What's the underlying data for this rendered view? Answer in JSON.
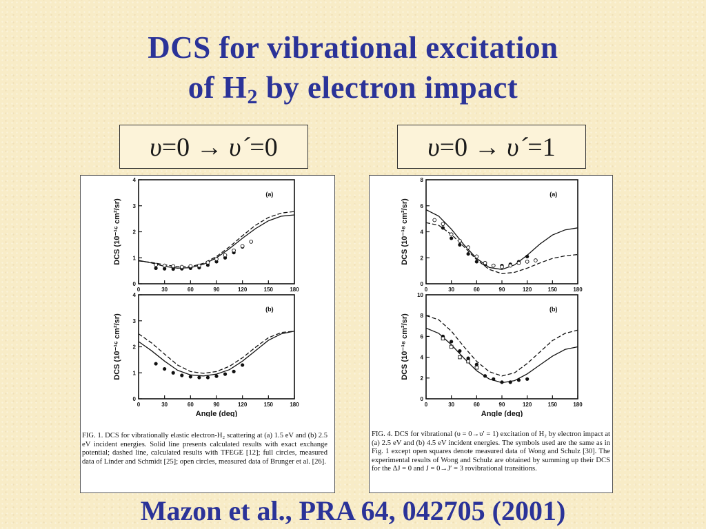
{
  "slide": {
    "title_line1": "DCS for vibrational excitation",
    "title_line2_pre": "of H",
    "title_line2_sub": "2",
    "title_line2_post": " by electron impact",
    "citation": "Mazon et al., PRA 64, 042705 (2001)",
    "colors": {
      "title": "#2b3398",
      "background": "#f8ecc7"
    }
  },
  "transitions": {
    "left": {
      "v": "υ",
      "rest": "=0 → ",
      "vp": "υ´",
      "end": "=0"
    },
    "right": {
      "v": "υ",
      "rest": "=0 → ",
      "vp": "υ´",
      "end": "=1"
    }
  },
  "captions": {
    "fig1": "FIG. 1. DCS for vibrationally elastic electron-H₂ scattering at (a) 1.5 eV and (b) 2.5 eV incident energies. Solid line presents calculated results with exact exchange potential; dashed line, calculated results with TFEGE [12]; full circles, measured data of Linder and Schmidt [25]; open circles, measured data of Brunger et al. [26].",
    "fig4": "FIG. 4. DCS for vibrational (υ = 0→υ′ = 1) excitation of H₂ by electron impact at (a) 2.5 eV and (b) 4.5 eV incident energies. The symbols used are the same as in Fig. 1 except open squares denote measured data of Wong and Schulz [30]. The experimental results of Wong and Schulz are obtained by summing up their DCS for the ΔJ = 0 and J = 0→J′ = 3 rovibrational transitions."
  },
  "chart_data": [
    {
      "type": "line",
      "figure": "FIG. 1",
      "panel_label": "(a)",
      "ylabel": "DCS (10⁻¹⁶ cm²/sr)",
      "xlabel": "",
      "xlim": [
        0,
        180
      ],
      "ylim": [
        0,
        4
      ],
      "xticks": [
        0,
        30,
        60,
        90,
        120,
        150,
        180
      ],
      "yticks": [
        0,
        1,
        2,
        3,
        4
      ],
      "series": [
        {
          "style": "solid",
          "x": [
            0,
            15,
            30,
            45,
            60,
            75,
            90,
            105,
            120,
            135,
            150,
            165,
            180
          ],
          "y": [
            0.9,
            0.8,
            0.67,
            0.6,
            0.62,
            0.75,
            1.0,
            1.35,
            1.75,
            2.12,
            2.42,
            2.6,
            2.65
          ]
        },
        {
          "style": "dashed",
          "x": [
            0,
            15,
            30,
            45,
            60,
            75,
            90,
            105,
            120,
            135,
            150,
            165,
            180
          ],
          "y": [
            0.88,
            0.82,
            0.73,
            0.66,
            0.66,
            0.79,
            1.05,
            1.42,
            1.85,
            2.25,
            2.55,
            2.72,
            2.78
          ]
        },
        {
          "style": "filled",
          "x": [
            20,
            30,
            40,
            50,
            60,
            70,
            80,
            90,
            100,
            110,
            120
          ],
          "y": [
            0.6,
            0.58,
            0.57,
            0.58,
            0.6,
            0.62,
            0.72,
            0.85,
            1.0,
            1.2,
            1.42
          ]
        },
        {
          "style": "open",
          "x": [
            20,
            30,
            40,
            50,
            60,
            70,
            80,
            90,
            100,
            110,
            120,
            130
          ],
          "y": [
            0.73,
            0.7,
            0.68,
            0.65,
            0.68,
            0.7,
            0.82,
            0.95,
            1.1,
            1.28,
            1.45,
            1.62
          ]
        }
      ]
    },
    {
      "type": "line",
      "figure": "FIG. 1",
      "panel_label": "(b)",
      "ylabel": "DCS (10⁻¹⁶ cm²/sr)",
      "xlabel": "Angle (deg)",
      "xlim": [
        0,
        180
      ],
      "ylim": [
        0,
        4
      ],
      "xticks": [
        0,
        30,
        60,
        90,
        120,
        150,
        180
      ],
      "yticks": [
        0,
        1,
        2,
        3,
        4
      ],
      "series": [
        {
          "style": "solid",
          "x": [
            0,
            15,
            30,
            45,
            60,
            75,
            90,
            105,
            120,
            135,
            150,
            165,
            180
          ],
          "y": [
            2.2,
            1.85,
            1.45,
            1.1,
            0.92,
            0.88,
            0.95,
            1.12,
            1.45,
            1.85,
            2.25,
            2.5,
            2.6
          ]
        },
        {
          "style": "dashed",
          "x": [
            0,
            15,
            30,
            45,
            60,
            75,
            90,
            105,
            120,
            135,
            150,
            165,
            180
          ],
          "y": [
            2.5,
            2.15,
            1.72,
            1.3,
            1.05,
            0.98,
            1.05,
            1.25,
            1.58,
            1.98,
            2.35,
            2.55,
            2.6
          ]
        },
        {
          "style": "filled",
          "x": [
            20,
            30,
            40,
            50,
            60,
            70,
            80,
            90,
            100,
            110,
            120
          ],
          "y": [
            1.35,
            1.15,
            1.0,
            0.9,
            0.85,
            0.82,
            0.82,
            0.87,
            0.95,
            1.05,
            1.3
          ]
        }
      ]
    },
    {
      "type": "line",
      "figure": "FIG. 4",
      "panel_label": "(a)",
      "ylabel": "DCS (10⁻¹⁸ cm²/sr)",
      "xlabel": "",
      "xlim": [
        0,
        180
      ],
      "ylim": [
        0,
        8
      ],
      "xticks": [
        0,
        30,
        60,
        90,
        120,
        150,
        180
      ],
      "yticks": [
        0,
        2,
        4,
        6,
        8
      ],
      "series": [
        {
          "style": "solid",
          "x": [
            0,
            15,
            30,
            45,
            60,
            75,
            90,
            105,
            120,
            135,
            150,
            165,
            180
          ],
          "y": [
            5.7,
            5.2,
            4.2,
            3.0,
            1.95,
            1.25,
            1.1,
            1.45,
            2.2,
            3.05,
            3.75,
            4.15,
            4.3
          ]
        },
        {
          "style": "dashed",
          "x": [
            0,
            15,
            30,
            45,
            60,
            75,
            90,
            105,
            120,
            135,
            150,
            165,
            180
          ],
          "y": [
            4.7,
            4.5,
            3.8,
            2.85,
            1.85,
            1.1,
            0.78,
            0.88,
            1.2,
            1.6,
            1.95,
            2.15,
            2.25
          ]
        },
        {
          "style": "filled",
          "x": [
            20,
            30,
            40,
            50,
            60,
            70,
            80,
            90,
            100,
            110,
            120
          ],
          "y": [
            4.3,
            3.5,
            3.0,
            2.3,
            1.7,
            1.5,
            1.4,
            1.4,
            1.5,
            1.7,
            2.1
          ]
        },
        {
          "style": "open",
          "x": [
            10,
            20,
            30,
            40,
            50,
            60,
            70,
            80,
            90,
            100,
            110,
            120,
            130
          ],
          "y": [
            4.9,
            4.6,
            3.8,
            3.3,
            2.8,
            2.1,
            1.6,
            1.4,
            1.3,
            1.4,
            1.6,
            1.7,
            1.8
          ]
        }
      ]
    },
    {
      "type": "line",
      "figure": "FIG. 4",
      "panel_label": "(b)",
      "ylabel": "DCS (10⁻¹⁸ cm²/sr)",
      "xlabel": "Angle (deg)",
      "xlim": [
        0,
        180
      ],
      "ylim": [
        0,
        10
      ],
      "xticks": [
        0,
        30,
        60,
        90,
        120,
        150,
        180
      ],
      "yticks": [
        0,
        2,
        4,
        6,
        8,
        10
      ],
      "series": [
        {
          "style": "solid",
          "x": [
            0,
            15,
            30,
            45,
            60,
            75,
            90,
            105,
            120,
            135,
            150,
            165,
            180
          ],
          "y": [
            6.8,
            6.3,
            5.2,
            3.9,
            2.7,
            1.9,
            1.55,
            1.75,
            2.4,
            3.25,
            4.1,
            4.75,
            5.0
          ]
        },
        {
          "style": "dashed",
          "x": [
            0,
            15,
            30,
            45,
            60,
            75,
            90,
            105,
            120,
            135,
            150,
            165,
            180
          ],
          "y": [
            8.0,
            7.6,
            6.5,
            5.0,
            3.6,
            2.6,
            2.2,
            2.5,
            3.4,
            4.5,
            5.6,
            6.3,
            6.6
          ]
        },
        {
          "style": "filled",
          "x": [
            20,
            30,
            40,
            50,
            60,
            70,
            80,
            90,
            100,
            110,
            120
          ],
          "y": [
            6.0,
            5.5,
            4.6,
            3.9,
            3.3,
            2.2,
            1.9,
            1.6,
            1.6,
            1.8,
            1.9
          ]
        },
        {
          "style": "square",
          "x": [
            20,
            30,
            40,
            50,
            60
          ],
          "y": [
            5.8,
            5.0,
            4.0,
            3.6,
            3.0
          ]
        }
      ]
    }
  ]
}
